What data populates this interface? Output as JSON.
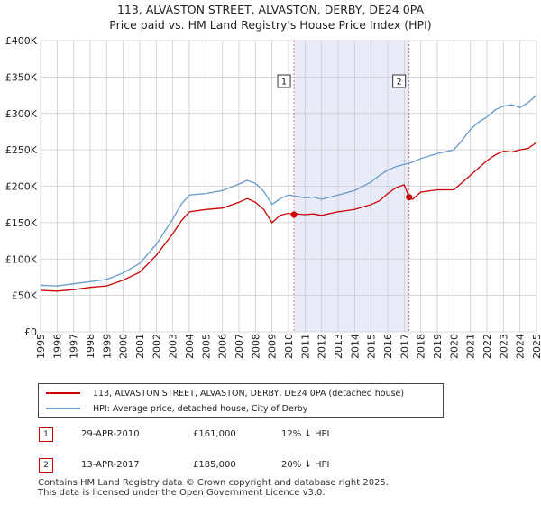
{
  "title_line1": "113, ALVASTON STREET, ALVASTON, DERBY, DE24 0PA",
  "title_line2": "Price paid vs. HM Land Registry's House Price Index (HPI)",
  "colors": {
    "red": "#cc0000",
    "blue": "#6699cc",
    "shade": "#e8ecf8",
    "grid": "#cccccc",
    "marker_line": "#dd7777"
  },
  "legend": {
    "red_label": "113, ALVASTON STREET, ALVASTON, DERBY, DE24 0PA (detached house)",
    "blue_label": "HPI: Average price, detached house, City of Derby"
  },
  "transactions": [
    {
      "num": "1",
      "date": "29-APR-2010",
      "price": "£161,000",
      "hpi": "12% ↓ HPI"
    },
    {
      "num": "2",
      "date": "13-APR-2017",
      "price": "£185,000",
      "hpi": "20% ↓ HPI"
    }
  ],
  "footer_line1": "Contains HM Land Registry data © Crown copyright and database right 2025.",
  "footer_line2": "This data is licensed under the Open Government Licence v3.0.",
  "chart_data": {
    "type": "line",
    "xlim": [
      1995,
      2025
    ],
    "ylim": [
      0,
      400000
    ],
    "y_ticks": [
      0,
      50000,
      100000,
      150000,
      200000,
      250000,
      300000,
      350000,
      400000
    ],
    "y_tick_labels": [
      "£0",
      "£50K",
      "£100K",
      "£150K",
      "£200K",
      "£250K",
      "£300K",
      "£350K",
      "£400K"
    ],
    "x_ticks": [
      "1995",
      "1996",
      "1997",
      "1998",
      "1999",
      "2000",
      "2001",
      "2002",
      "2003",
      "2004",
      "2005",
      "2006",
      "2007",
      "2008",
      "2009",
      "2010",
      "2011",
      "2012",
      "2013",
      "2014",
      "2015",
      "2016",
      "2017",
      "2018",
      "2019",
      "2020",
      "2021",
      "2022",
      "2023",
      "2024",
      "2025"
    ],
    "shaded_range": [
      2010.33,
      2017.29
    ],
    "markers": [
      {
        "label": "1",
        "x": 2010.33,
        "y": 161000
      },
      {
        "label": "2",
        "x": 2017.29,
        "y": 185000
      }
    ],
    "series": [
      {
        "name": "113, ALVASTON STREET, ALVASTON, DERBY, DE24 0PA (detached house)",
        "color": "#cc0000",
        "x": [
          1995,
          1996,
          1997,
          1998,
          1999,
          2000,
          2001,
          2002,
          2003,
          2003.5,
          2004,
          2005,
          2006,
          2007,
          2007.5,
          2008,
          2008.5,
          2009,
          2009.5,
          2010,
          2010.33,
          2010.5,
          2011,
          2011.5,
          2012,
          2013,
          2014,
          2015,
          2015.5,
          2016,
          2016.5,
          2017,
          2017.29,
          2017.5,
          2018,
          2019,
          2020,
          2020.5,
          2021,
          2021.5,
          2022,
          2022.5,
          2023,
          2023.5,
          2024,
          2024.5,
          2025
        ],
        "y": [
          57000,
          56000,
          58000,
          61000,
          63000,
          71000,
          82000,
          105000,
          135000,
          152000,
          165000,
          168000,
          170000,
          178000,
          183000,
          178000,
          168000,
          150000,
          160000,
          163000,
          161000,
          162000,
          161000,
          162000,
          160000,
          165000,
          168000,
          175000,
          180000,
          190000,
          198000,
          202000,
          185000,
          182000,
          192000,
          195000,
          195000,
          205000,
          215000,
          225000,
          235000,
          243000,
          248000,
          247000,
          250000,
          252000,
          260000
        ]
      },
      {
        "name": "HPI: Average price, detached house, City of Derby",
        "color": "#6699cc",
        "x": [
          1995,
          1996,
          1997,
          1998,
          1999,
          2000,
          2001,
          2002,
          2003,
          2003.5,
          2004,
          2005,
          2006,
          2007,
          2007.5,
          2008,
          2008.5,
          2009,
          2009.5,
          2010,
          2010.5,
          2011,
          2011.5,
          2012,
          2013,
          2014,
          2015,
          2015.5,
          2016,
          2016.5,
          2017,
          2017.5,
          2018,
          2019,
          2020,
          2020.5,
          2021,
          2021.5,
          2022,
          2022.5,
          2023,
          2023.5,
          2024,
          2024.5,
          2025
        ],
        "y": [
          64000,
          63000,
          66000,
          69000,
          72000,
          81000,
          94000,
          120000,
          155000,
          175000,
          188000,
          190000,
          194000,
          203000,
          208000,
          204000,
          193000,
          175000,
          183000,
          188000,
          186000,
          184000,
          185000,
          182000,
          188000,
          194000,
          206000,
          215000,
          222000,
          227000,
          230000,
          233000,
          238000,
          245000,
          250000,
          263000,
          278000,
          288000,
          295000,
          305000,
          310000,
          312000,
          308000,
          315000,
          325000
        ]
      }
    ]
  }
}
